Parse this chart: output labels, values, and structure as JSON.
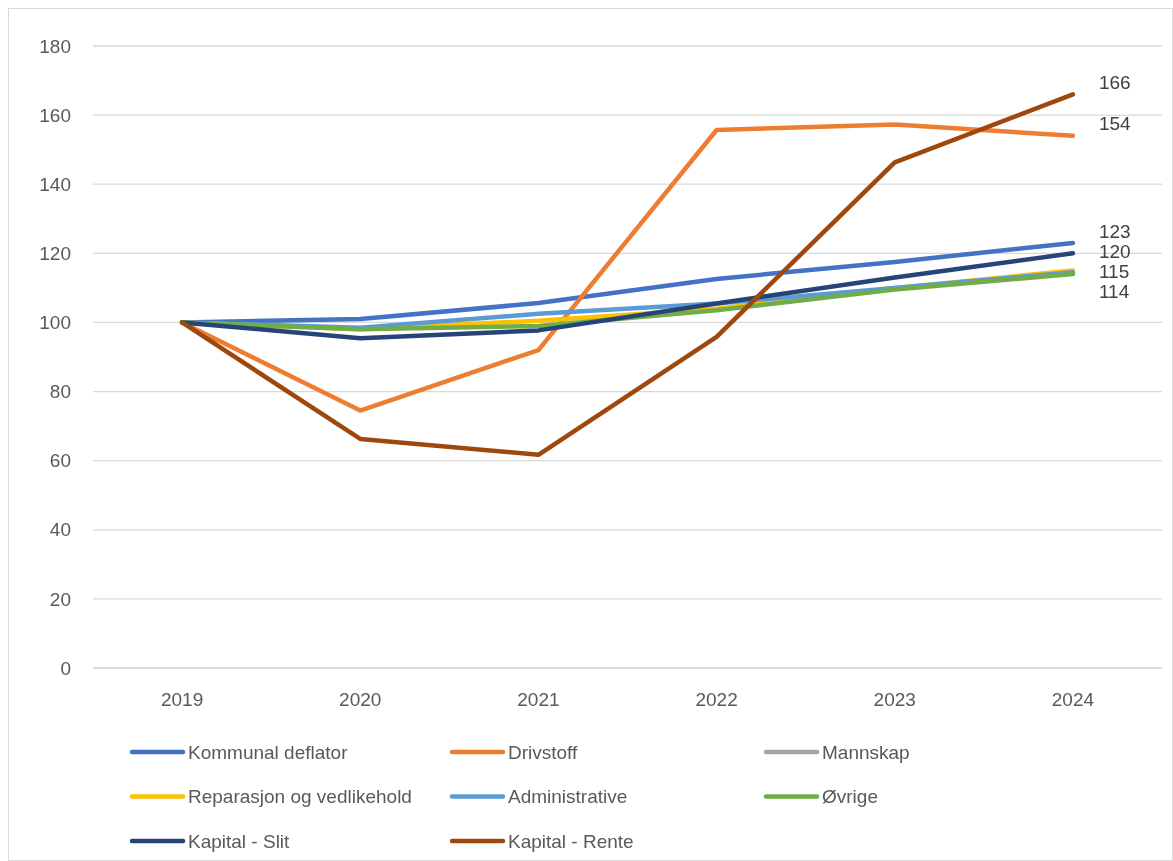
{
  "chart_data": {
    "type": "line",
    "categories": [
      "2019",
      "2020",
      "2021",
      "2022",
      "2023",
      "2024"
    ],
    "ylim": [
      0,
      180
    ],
    "yticks": [
      0,
      20,
      40,
      60,
      80,
      100,
      120,
      140,
      160,
      180
    ],
    "grid": "y",
    "legend": "bottom",
    "marker": "none",
    "line_style": "solid",
    "series": [
      {
        "name": "Kommunal deflator",
        "color": "#4472c4",
        "values": [
          100,
          101,
          105.6,
          112.6,
          117.5,
          123
        ],
        "value_labels": [
          null,
          null,
          null,
          null,
          null,
          "123"
        ]
      },
      {
        "name": "Drivstoff",
        "color": "#ed7d31",
        "values": [
          100,
          74.5,
          92,
          155.7,
          157.3,
          154
        ],
        "value_labels": [
          null,
          null,
          null,
          null,
          null,
          "154"
        ]
      },
      {
        "name": "Mannskap",
        "color": "#a5a5a5",
        "values": [
          null,
          null,
          null,
          null,
          null,
          null
        ]
      },
      {
        "name": "Reparasjon og vedlikehold",
        "color": "#ffc000",
        "values": [
          100,
          98,
          100.5,
          104,
          110,
          115
        ],
        "value_labels": [
          null,
          null,
          null,
          null,
          null,
          "115"
        ]
      },
      {
        "name": "Administrative",
        "color": "#5b9bd5",
        "values": [
          100,
          98.5,
          102.5,
          105.5,
          110,
          114.5
        ]
      },
      {
        "name": "Øvrige",
        "color": "#70ad47",
        "values": [
          100,
          98,
          99,
          103.5,
          109.5,
          114
        ],
        "value_labels": [
          null,
          null,
          null,
          null,
          null,
          "114"
        ]
      },
      {
        "name": "Kapital - Slit",
        "color": "#264478",
        "values": [
          100,
          95.4,
          97.7,
          105.5,
          113,
          120
        ],
        "value_labels": [
          null,
          null,
          null,
          null,
          null,
          "120"
        ]
      },
      {
        "name": "Kapital - Rente",
        "color": "#9e480e",
        "values": [
          100,
          66.3,
          61.7,
          95.8,
          146.3,
          166
        ],
        "value_labels": [
          null,
          null,
          null,
          null,
          null,
          "166"
        ]
      }
    ]
  }
}
